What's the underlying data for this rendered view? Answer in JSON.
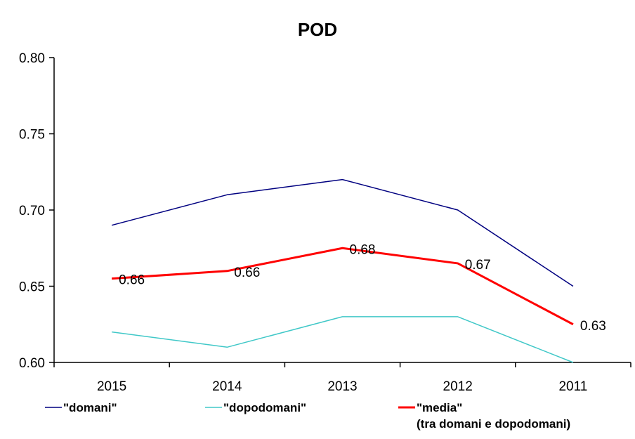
{
  "chart_data": {
    "type": "line",
    "title": "POD",
    "xlabel": "",
    "ylabel": "",
    "categories": [
      "2015",
      "2014",
      "2013",
      "2012",
      "2011"
    ],
    "ylim": [
      0.6,
      0.8
    ],
    "yticks": [
      "0.60",
      "0.65",
      "0.70",
      "0.75",
      "0.80"
    ],
    "grid": false,
    "legend_position": "bottom",
    "series": [
      {
        "name": "\"domani\"",
        "color": "#000080",
        "values": [
          0.69,
          0.71,
          0.72,
          0.7,
          0.65
        ],
        "data_labels": []
      },
      {
        "name": "\"dopodomani\"",
        "color": "#40c8c8",
        "values": [
          0.62,
          0.61,
          0.63,
          0.63,
          0.6
        ],
        "data_labels": []
      },
      {
        "name": "\"media\"",
        "name_line2": "(tra domani e dopodomani)",
        "color": "#ff0000",
        "values": [
          0.655,
          0.66,
          0.675,
          0.665,
          0.625
        ],
        "data_labels": [
          "0.66",
          "0.66",
          "0.68",
          "0.67",
          "0.63"
        ]
      }
    ]
  }
}
